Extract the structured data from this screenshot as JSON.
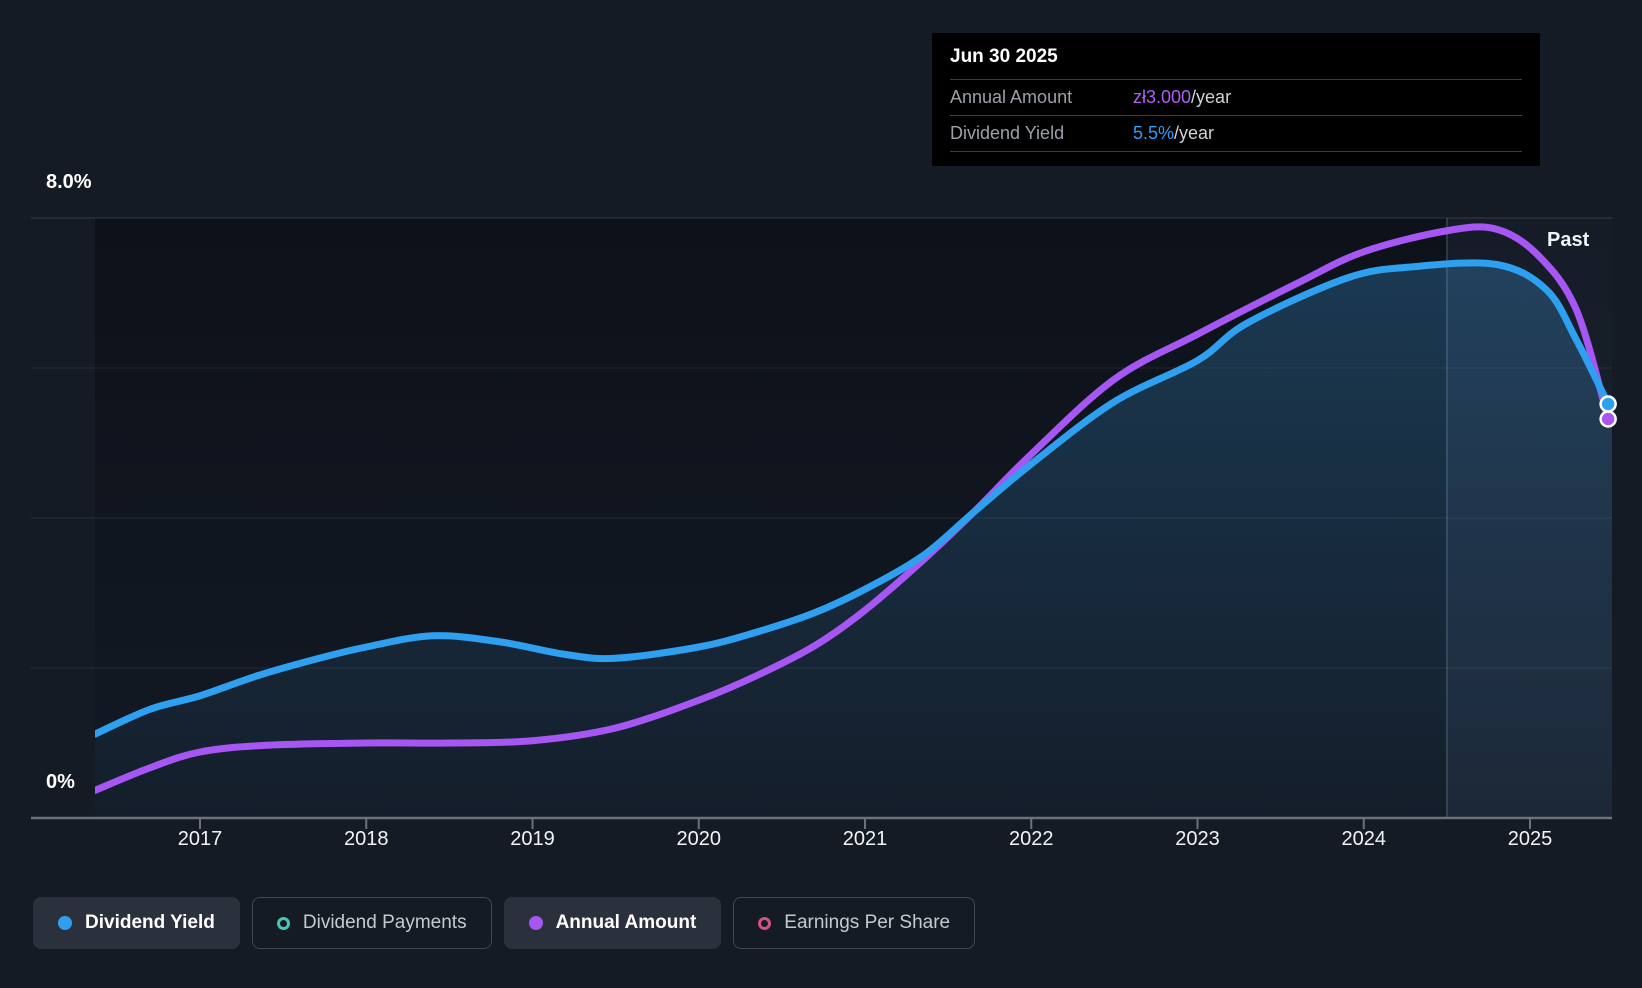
{
  "tooltip": {
    "title": "Jun 30 2025",
    "rows": [
      {
        "label": "Annual Amount",
        "value": "zł3.000",
        "unit": "/year",
        "value_color": "#b15df3"
      },
      {
        "label": "Dividend Yield",
        "value": "5.5%",
        "unit": "/year",
        "value_color": "#2e9df5"
      }
    ]
  },
  "past_label": "Past",
  "legend": {
    "items": [
      {
        "label": "Dividend Yield",
        "color": "#2f9ff0",
        "active": true,
        "marker": "filled"
      },
      {
        "label": "Dividend Payments",
        "color": "#48c4b8",
        "active": false,
        "marker": "ring"
      },
      {
        "label": "Annual Amount",
        "color": "#a656f2",
        "active": true,
        "marker": "filled"
      },
      {
        "label": "Earnings Per Share",
        "color": "#d05480",
        "active": false,
        "marker": "ring"
      }
    ]
  },
  "chart_data": {
    "type": "line",
    "title": "Dividend history chart",
    "y_axis": {
      "top": "8.0%",
      "bottom": "0%"
    },
    "ylim": [
      0,
      8
    ],
    "y_gridlines_pct": [
      2,
      4,
      6,
      8
    ],
    "x_ticks": [
      2017,
      2018,
      2019,
      2020,
      2021,
      2022,
      2023,
      2024,
      2025
    ],
    "x_range": [
      2016.37,
      2025.49
    ],
    "divider_year": 2024.5,
    "colors": {
      "dividend_yield": "#2f9ff0",
      "annual_amount": "#a656f2",
      "area_fill": "rgba(58,150,214,0.30)",
      "highlight_band": "rgba(125,170,215,0.08)",
      "gridline": "rgba(255,255,255,0.08)",
      "gridline_top": "rgba(255,255,255,0.15)",
      "axis": "#6b727c",
      "divider": "rgba(150,185,220,0.28)"
    },
    "series": [
      {
        "name": "Annual Amount",
        "color": "#a656f2",
        "style": "line",
        "points": [
          [
            2016.37,
            0.37
          ],
          [
            2016.7,
            0.67
          ],
          [
            2017,
            0.88
          ],
          [
            2017.4,
            0.97
          ],
          [
            2018,
            1.0
          ],
          [
            2018.5,
            1.0
          ],
          [
            2019,
            1.03
          ],
          [
            2019.5,
            1.2
          ],
          [
            2020,
            1.57
          ],
          [
            2020.35,
            1.9
          ],
          [
            2020.7,
            2.3
          ],
          [
            2021,
            2.77
          ],
          [
            2021.35,
            3.44
          ],
          [
            2021.65,
            4.07
          ],
          [
            2022,
            4.85
          ],
          [
            2022.5,
            5.85
          ],
          [
            2023,
            6.45
          ],
          [
            2023.6,
            7.13
          ],
          [
            2024,
            7.55
          ],
          [
            2024.5,
            7.83
          ],
          [
            2024.8,
            7.85
          ],
          [
            2025.05,
            7.5
          ],
          [
            2025.28,
            6.77
          ],
          [
            2025.47,
            5.32
          ]
        ]
      },
      {
        "name": "Dividend Yield",
        "color": "#2f9ff0",
        "style": "area-line",
        "points": [
          [
            2016.37,
            1.12
          ],
          [
            2016.7,
            1.45
          ],
          [
            2017,
            1.63
          ],
          [
            2017.35,
            1.9
          ],
          [
            2017.7,
            2.12
          ],
          [
            2018,
            2.28
          ],
          [
            2018.4,
            2.43
          ],
          [
            2018.8,
            2.35
          ],
          [
            2019.2,
            2.18
          ],
          [
            2019.5,
            2.13
          ],
          [
            2020,
            2.28
          ],
          [
            2020.35,
            2.48
          ],
          [
            2020.7,
            2.74
          ],
          [
            2021,
            3.05
          ],
          [
            2021.35,
            3.5
          ],
          [
            2021.65,
            4.07
          ],
          [
            2022,
            4.72
          ],
          [
            2022.5,
            5.55
          ],
          [
            2023,
            6.1
          ],
          [
            2023.3,
            6.6
          ],
          [
            2023.9,
            7.2
          ],
          [
            2024.3,
            7.35
          ],
          [
            2024.8,
            7.38
          ],
          [
            2025.1,
            7.04
          ],
          [
            2025.28,
            6.37
          ],
          [
            2025.47,
            5.52
          ]
        ]
      }
    ],
    "end_markers": [
      {
        "series": "Dividend Yield",
        "year": 2025.47,
        "pct": 5.52,
        "color": "#2f9ff0"
      },
      {
        "series": "Annual Amount",
        "year": 2025.47,
        "pct": 5.32,
        "color": "#a656f2"
      }
    ]
  }
}
